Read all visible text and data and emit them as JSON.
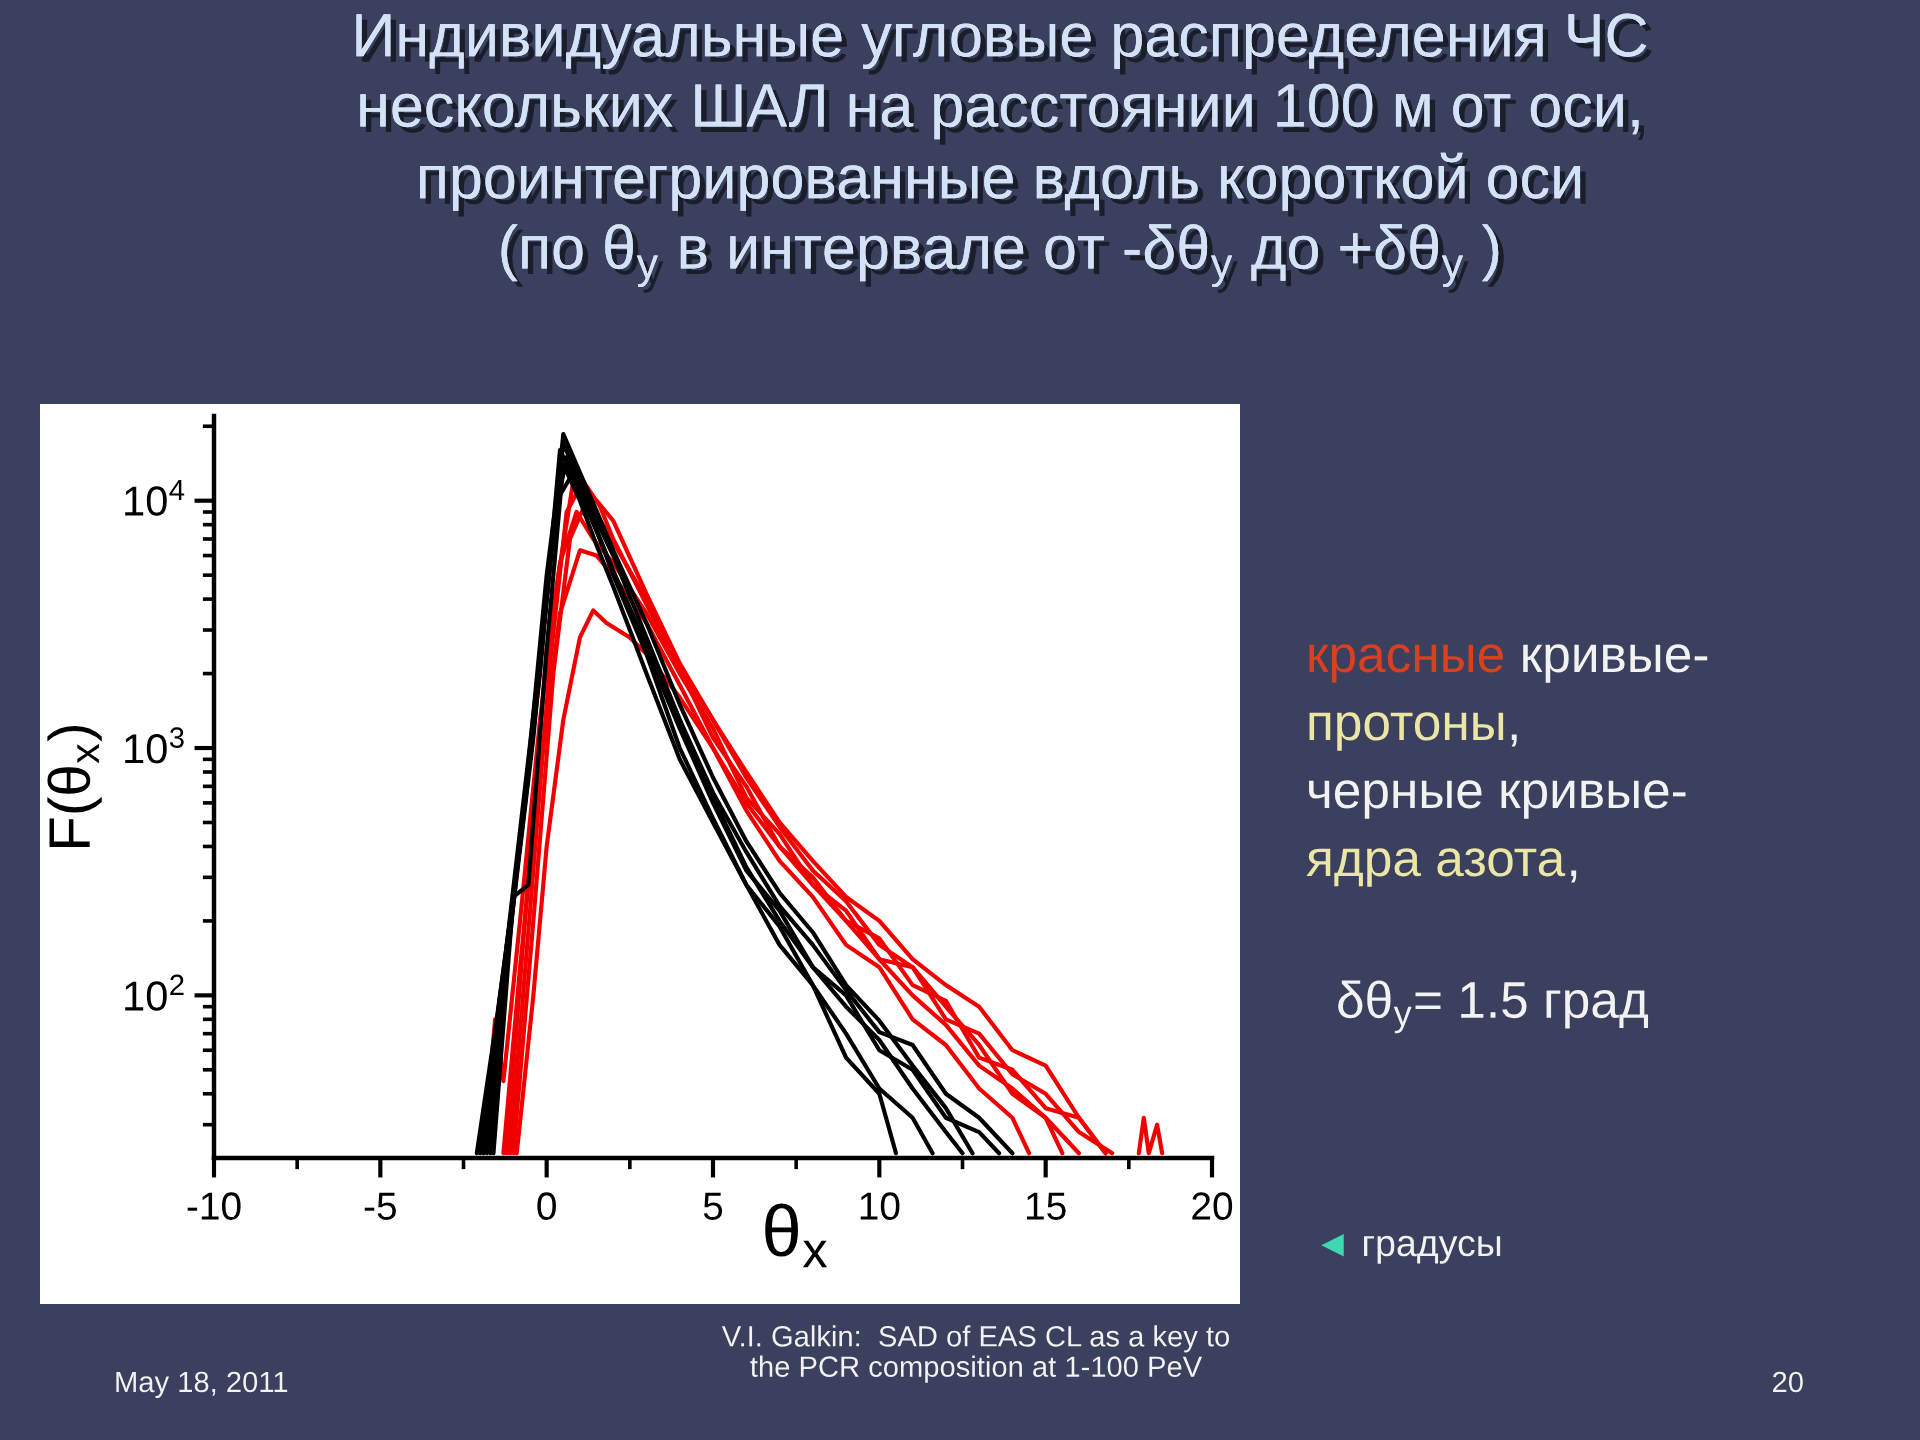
{
  "chart_data": {
    "type": "line",
    "title": "Индивидуальные угловые распределения ЧС\nнескольких ШАЛ на расстоянии 100 м от оси,\nпроинтегрированные вдоль короткой оси\n(по θ$_{y}$ в интервале от -δθ$_{y}$ до +δθ$_{y}$ )",
    "xlabel": "θ$_{x}$",
    "ylabel": "F(θ$_{x}$)",
    "log": true,
    "xlim": [
      -10,
      20
    ],
    "xticks": [
      -10,
      {
        "value": -7.5,
        "label": null
      },
      -5,
      {
        "value": -2.5,
        "label": null
      },
      0,
      {
        "value": 2.5,
        "label": null
      },
      5,
      {
        "value": 7.5,
        "label": null
      },
      10,
      {
        "value": 12.5,
        "label": null
      },
      15,
      {
        "value": 17.5,
        "label": null
      },
      20
    ],
    "ylim": [
      22,
      22000
    ],
    "yticks": [
      {
        "value": 30,
        "label": null
      },
      {
        "value": 40,
        "label": null
      },
      {
        "value": 50,
        "label": null
      },
      {
        "value": 60,
        "label": null
      },
      {
        "value": 70,
        "label": null
      },
      {
        "value": 80,
        "label": null
      },
      {
        "value": 90,
        "label": null
      },
      {
        "value": 100,
        "label": "10$^{2}$"
      },
      {
        "value": 200,
        "label": null
      },
      {
        "value": 300,
        "label": null
      },
      {
        "value": 400,
        "label": null
      },
      {
        "value": 500,
        "label": null
      },
      {
        "value": 600,
        "label": null
      },
      {
        "value": 700,
        "label": null
      },
      {
        "value": 800,
        "label": null
      },
      {
        "value": 900,
        "label": null
      },
      {
        "value": 1000,
        "label": "10$^{3}$"
      },
      {
        "value": 2000,
        "label": null
      },
      {
        "value": 3000,
        "label": null
      },
      {
        "value": 4000,
        "label": null
      },
      {
        "value": 5000,
        "label": null
      },
      {
        "value": 6000,
        "label": null
      },
      {
        "value": 7000,
        "label": null
      },
      {
        "value": 8000,
        "label": null
      },
      {
        "value": 9000,
        "label": null
      },
      {
        "value": 10000,
        "label": "10$^{4}$"
      },
      {
        "value": 20000,
        "label": null
      }
    ],
    "series": [
      {
        "color": "#f00000",
        "x": [
          -1.2,
          -0.6,
          0,
          0.8,
          1.5,
          2,
          3,
          4,
          5,
          6,
          7,
          8,
          9,
          10,
          11,
          12,
          13,
          14,
          15,
          15.5
        ],
        "values": [
          23,
          250,
          2500,
          12000,
          10000,
          8300,
          4200,
          2200,
          1300,
          760,
          480,
          320,
          240,
          160,
          130,
          90,
          63,
          40,
          32,
          23
        ]
      },
      {
        "color": "#f00000",
        "x": [
          -1.0,
          -0.4,
          0.2,
          0.7,
          1.2,
          1.8,
          2.5,
          3,
          4,
          5,
          6,
          7,
          8,
          9,
          10,
          11,
          12,
          13,
          14,
          15,
          16,
          16.8
        ],
        "values": [
          23,
          200,
          2000,
          7000,
          10000,
          7600,
          5200,
          4000,
          2100,
          1100,
          700,
          400,
          300,
          200,
          170,
          110,
          95,
          56,
          50,
          35,
          32,
          23
        ]
      },
      {
        "color": "#f00000",
        "x": [
          -1.3,
          -0.8,
          -0.2,
          0.4,
          1.0,
          1.5,
          2,
          3,
          4,
          5,
          6,
          7,
          8,
          9,
          10,
          11,
          12,
          13,
          14,
          14.5
        ],
        "values": [
          23,
          130,
          800,
          3500,
          6300,
          6000,
          5000,
          3200,
          1800,
          1000,
          560,
          350,
          250,
          160,
          130,
          80,
          63,
          42,
          32,
          23
        ]
      },
      {
        "color": "#f00000",
        "x": [
          -0.9,
          -0.4,
          0,
          0.5,
          1.0,
          1.4,
          1.8,
          2.5,
          3,
          4,
          5,
          6,
          7,
          8,
          9,
          10,
          11,
          12,
          13,
          14,
          15,
          16,
          17
        ],
        "values": [
          23,
          100,
          400,
          1300,
          2800,
          3600,
          3200,
          2800,
          2400,
          1600,
          1000,
          600,
          400,
          280,
          200,
          140,
          130,
          80,
          70,
          48,
          40,
          28,
          23
        ]
      },
      {
        "color": "#f00000",
        "x": [
          -1.9,
          -1.55,
          -1.3,
          -0.8,
          -0.2,
          0.4,
          0.9,
          1.4,
          2,
          3,
          4,
          5,
          6,
          7,
          8,
          9,
          10,
          11,
          12,
          13,
          14,
          15,
          16
        ],
        "values": [
          23,
          80,
          45,
          200,
          1300,
          5600,
          9000,
          7000,
          5600,
          3500,
          2000,
          1200,
          630,
          450,
          280,
          220,
          140,
          100,
          76,
          52,
          42,
          32,
          23
        ]
      },
      {
        "color": "#f00000",
        "x": [
          -1.1,
          -0.5,
          0.1,
          0.6,
          1.1,
          1.6,
          2,
          3,
          4,
          5,
          6,
          7,
          8,
          9,
          10,
          11,
          12,
          13,
          14,
          15,
          16,
          16.8,
          17.4,
          17.8,
          17.95,
          18.1,
          18.35,
          18.5
        ],
        "values": [
          23,
          220,
          2200,
          9000,
          12000,
          9500,
          7000,
          3800,
          2100,
          1300,
          800,
          500,
          350,
          250,
          200,
          140,
          110,
          90,
          60,
          52,
          32,
          23,
          null,
          23,
          32,
          23,
          30,
          23
        ]
      },
      {
        "color": "#000000",
        "x": [
          -1.8,
          -1.2,
          -0.6,
          0,
          0.5,
          1,
          1.5,
          2,
          3,
          4,
          5,
          6,
          7,
          8,
          9,
          10,
          11,
          12,
          12.8
        ],
        "values": [
          23,
          160,
          790,
          4000,
          18600,
          13000,
          9100,
          6300,
          3200,
          1500,
          760,
          420,
          260,
          180,
          110,
          79,
          52,
          35,
          23
        ]
      },
      {
        "color": "#000000",
        "x": [
          -2,
          -1.4,
          -0.8,
          -0.2,
          0.4,
          1,
          1.5,
          2,
          3,
          4,
          5,
          6,
          7,
          8,
          9,
          10,
          11,
          12,
          13,
          13.6
        ],
        "values": [
          23,
          100,
          400,
          2000,
          16000,
          11000,
          7600,
          5200,
          2500,
          1200,
          600,
          320,
          220,
          130,
          100,
          60,
          50,
          32,
          28,
          23
        ]
      },
      {
        "color": "#000000",
        "x": [
          -1.6,
          -1.0,
          -0.55,
          0,
          0.5,
          1,
          1.5,
          2,
          3,
          4,
          5,
          6,
          7,
          8,
          9,
          10,
          10.5
        ],
        "values": [
          23,
          250,
          280,
          2500,
          14000,
          10000,
          6600,
          4500,
          2000,
          900,
          500,
          280,
          160,
          110,
          56,
          40,
          23
        ]
      },
      {
        "color": "#000000",
        "x": [
          -1.9,
          -1.2,
          -0.5,
          0,
          0.5,
          1,
          1.5,
          2,
          3,
          4,
          5,
          6,
          7,
          8,
          9,
          10,
          11,
          12,
          13,
          14
        ],
        "values": [
          23,
          130,
          1000,
          5000,
          17000,
          12000,
          8300,
          6000,
          2800,
          1300,
          660,
          380,
          230,
          160,
          105,
          71,
          63,
          40,
          32,
          23
        ]
      },
      {
        "color": "#000000",
        "x": [
          -2.1,
          -1.5,
          -0.9,
          -0.3,
          0.3,
          0.8,
          1.3,
          2,
          3,
          4,
          5,
          6,
          7,
          8,
          9,
          10,
          11,
          11.6
        ],
        "values": [
          23,
          80,
          320,
          1600,
          10000,
          13000,
          9000,
          5000,
          2400,
          1000,
          520,
          280,
          190,
          110,
          70,
          42,
          32,
          23
        ]
      },
      {
        "color": "#000000",
        "x": [
          -1.7,
          -1.1,
          -0.4,
          0.2,
          0.6,
          1.1,
          1.6,
          2,
          3,
          4,
          5,
          6,
          7,
          8,
          9,
          10,
          11,
          12,
          12.5
        ],
        "values": [
          23,
          180,
          1100,
          8000,
          15000,
          10000,
          7000,
          5200,
          2600,
          1300,
          630,
          330,
          200,
          130,
          90,
          66,
          42,
          28,
          23
        ]
      }
    ],
    "annotations": [
      "красные кривые-",
      "протоны,",
      "черные кривые-",
      "ядра азота,",
      "δθ$_{y}$= 1.5 град",
      "◄ градусы",
      "May 18, 2011",
      "V.I. Galkin:  SAD of EAS CL as a key to\nthe PCR composition at 1-100 PeV",
      "20"
    ]
  }
}
